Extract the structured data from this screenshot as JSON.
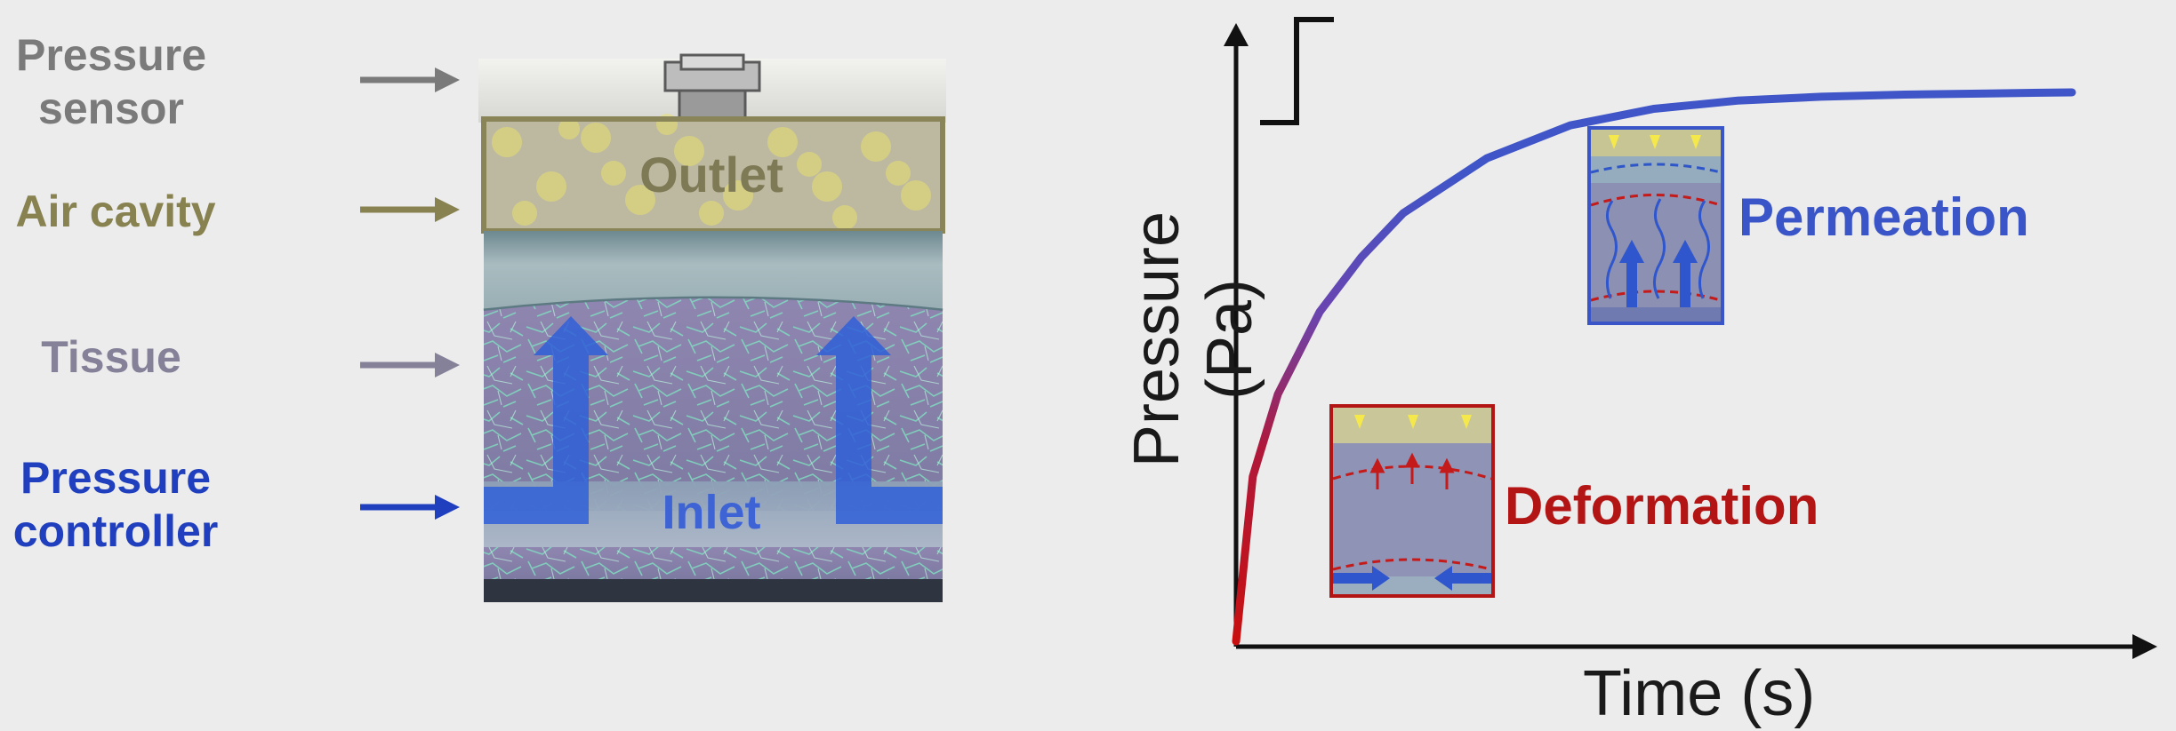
{
  "labels": {
    "pressure_sensor": "Pressure\nsensor",
    "air_cavity": "Air cavity",
    "tissue": "Tissue",
    "pressure_controller": "Pressure\ncontroller",
    "outlet": "Outlet",
    "inlet": "Inlet"
  },
  "colors": {
    "sensor_gray": "#7a7a7a",
    "air_cavity_olive": "#87824f",
    "tissue_gray": "#858199",
    "controller_blue": "#1f3fbf",
    "permeation_blue": "#3a55c8",
    "deformation_red": "#b31515"
  },
  "chart": {
    "xlabel": "Time (s)",
    "ylabel": "Pressure (Pa)",
    "phase_permeation": "Permeation",
    "phase_deformation": "Deformation"
  },
  "chart_data": {
    "type": "line",
    "title": "",
    "xlabel": "Time (s)",
    "ylabel": "Pressure (Pa)",
    "grid": false,
    "tick_labels": "none",
    "x": [
      0,
      0.02,
      0.05,
      0.1,
      0.15,
      0.2,
      0.3,
      0.4,
      0.5,
      0.6,
      0.7,
      0.8,
      0.9,
      1.0
    ],
    "values": [
      0,
      0.3,
      0.45,
      0.6,
      0.7,
      0.78,
      0.88,
      0.94,
      0.97,
      0.985,
      0.992,
      0.996,
      0.998,
      1.0
    ],
    "series": [
      {
        "name": "Deformation",
        "segment": "early"
      },
      {
        "name": "Permeation",
        "segment": "late"
      }
    ],
    "input": "step"
  }
}
